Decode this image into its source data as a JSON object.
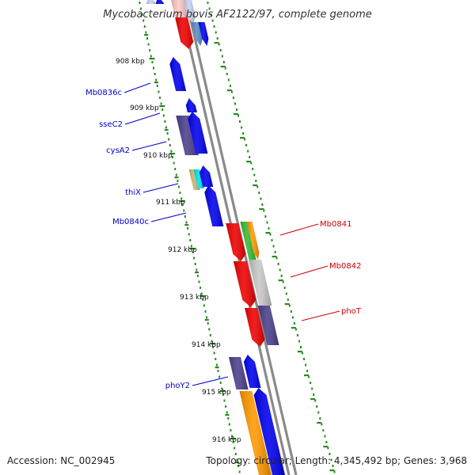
{
  "title": "Mycobacterium bovis AF2122/97, complete genome",
  "footer": {
    "accession": "Accession: NC_002945",
    "summary": "Topology: circular; Length: 4,345,492 bp; Genes: 3,968"
  },
  "colors": {
    "axis": "#808080",
    "ticks": "#2a8a1e",
    "left_labels": "#0000cc",
    "right_labels": "#cc0000",
    "blue": "#0000ee",
    "red": "#ee0000",
    "purple": "#4a3f8a",
    "orange": "#ff9900",
    "gray": "#c8c8c8",
    "green": "#33bb33",
    "cyan": "#00e5e5",
    "tan": "#c8b478",
    "steelblue": "#5a8cc8",
    "lightblue": "#c8d2f0",
    "pink": "#ffc8c8"
  },
  "kbp_labels": [
    "908 kbp",
    "909 kbp",
    "910 kbp",
    "911 kbp",
    "912 kbp",
    "913 kbp",
    "914 kbp",
    "915 kbp",
    "916 kbp"
  ],
  "gene_labels_left": [
    "Mb0836c",
    "sseC2",
    "cysA2",
    "thiX",
    "Mb0840c",
    "phoY2"
  ],
  "gene_labels_right": [
    "Mb0841",
    "Mb0842",
    "phoT"
  ]
}
